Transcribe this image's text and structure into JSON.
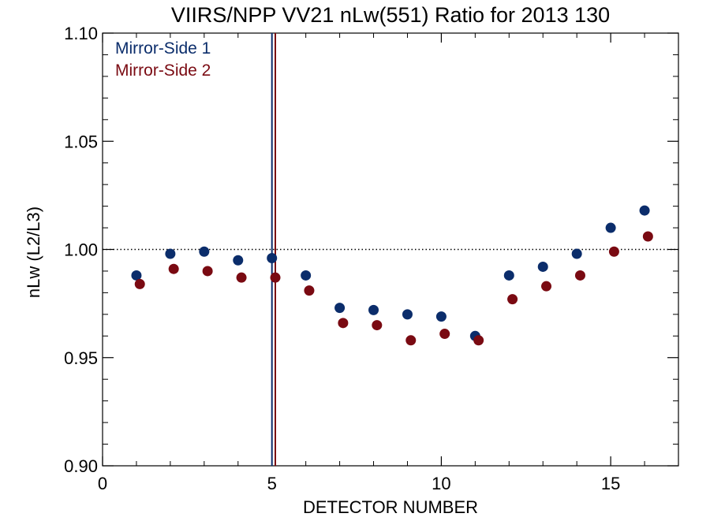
{
  "chart_data": {
    "type": "scatter",
    "title": "VIIRS/NPP VV21 nLw(551) Ratio for 2013 130",
    "xlabel": "DETECTOR NUMBER",
    "ylabel": "nLw (L2/L3)",
    "xlim": [
      0,
      17
    ],
    "ylim": [
      0.9,
      1.1
    ],
    "x_ticks": [
      0,
      5,
      10,
      15
    ],
    "x_tick_labels": [
      "0",
      "5",
      "10",
      "15"
    ],
    "y_ticks": [
      0.9,
      0.95,
      1.0,
      1.05,
      1.1
    ],
    "y_tick_labels": [
      "0.90",
      "0.95",
      "1.00",
      "1.05",
      "1.10"
    ],
    "reference_line": 1.0,
    "vertical_markers": [
      {
        "x": 5.0,
        "series": "Mirror-Side 1"
      },
      {
        "x": 5.1,
        "series": "Mirror-Side 2"
      }
    ],
    "legend_placement": "top-left",
    "series": [
      {
        "name": "Mirror-Side 1",
        "color": "#0b2d6b",
        "x": [
          1,
          2,
          3,
          4,
          5,
          6,
          7,
          8,
          9,
          10,
          11,
          12,
          13,
          14,
          15,
          16
        ],
        "y": [
          0.988,
          0.998,
          0.999,
          0.995,
          0.996,
          0.988,
          0.973,
          0.972,
          0.97,
          0.969,
          0.96,
          0.988,
          0.992,
          0.998,
          1.01,
          1.018
        ]
      },
      {
        "name": "Mirror-Side 2",
        "color": "#7a0a12",
        "x": [
          1.1,
          2.1,
          3.1,
          4.1,
          5.1,
          6.1,
          7.1,
          8.1,
          9.1,
          10.1,
          11.1,
          12.1,
          13.1,
          14.1,
          15.1,
          16.1
        ],
        "y": [
          0.984,
          0.991,
          0.99,
          0.987,
          0.987,
          0.981,
          0.966,
          0.965,
          0.958,
          0.961,
          0.958,
          0.977,
          0.983,
          0.988,
          0.999,
          1.006
        ]
      }
    ]
  }
}
